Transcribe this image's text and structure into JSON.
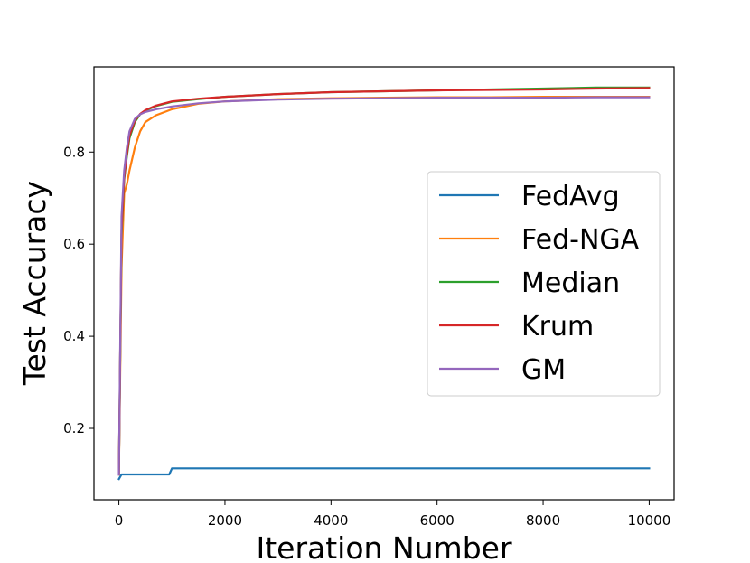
{
  "chart_data": {
    "type": "line",
    "xlabel": "Iteration Number",
    "ylabel": "Test Accuracy",
    "xlim": [
      -470,
      10470
    ],
    "ylim": [
      0.045,
      0.985
    ],
    "xticks": [
      0,
      2000,
      4000,
      6000,
      8000,
      10000
    ],
    "xtick_labels": [
      "0",
      "2000",
      "4000",
      "6000",
      "8000",
      "10000"
    ],
    "yticks": [
      0.2,
      0.4,
      0.6,
      0.8
    ],
    "ytick_labels": [
      "0.2",
      "0.4",
      "0.6",
      "0.8"
    ],
    "grid": false,
    "legend_position": "right",
    "series": [
      {
        "name": "FedAvg",
        "color": "#1f77b4",
        "x": [
          0,
          50,
          950,
          1000,
          10000
        ],
        "y": [
          0.09,
          0.1,
          0.1,
          0.113,
          0.113
        ]
      },
      {
        "name": "Fed-NGA",
        "color": "#ff7f0e",
        "x": [
          0,
          50,
          100,
          150,
          200,
          300,
          400,
          500,
          700,
          1000,
          1500,
          2000,
          3000,
          4000,
          5000,
          6000,
          7000,
          8000,
          9000,
          10000
        ],
        "y": [
          0.1,
          0.55,
          0.71,
          0.73,
          0.76,
          0.81,
          0.845,
          0.865,
          0.88,
          0.893,
          0.905,
          0.91,
          0.915,
          0.917,
          0.918,
          0.919,
          0.919,
          0.92,
          0.92,
          0.92
        ]
      },
      {
        "name": "Median",
        "color": "#2ca02c",
        "x": [
          0,
          50,
          100,
          150,
          200,
          300,
          400,
          500,
          700,
          1000,
          1500,
          2000,
          3000,
          4000,
          5000,
          6000,
          7000,
          8000,
          9000,
          10000
        ],
        "y": [
          0.1,
          0.62,
          0.74,
          0.79,
          0.83,
          0.865,
          0.882,
          0.89,
          0.9,
          0.909,
          0.915,
          0.92,
          0.926,
          0.93,
          0.932,
          0.934,
          0.936,
          0.938,
          0.94,
          0.94
        ]
      },
      {
        "name": "Krum",
        "color": "#d62728",
        "x": [
          0,
          50,
          100,
          150,
          200,
          300,
          400,
          500,
          700,
          1000,
          1500,
          2000,
          3000,
          4000,
          5000,
          6000,
          7000,
          8000,
          9000,
          10000
        ],
        "y": [
          0.1,
          0.63,
          0.745,
          0.795,
          0.835,
          0.868,
          0.883,
          0.891,
          0.901,
          0.91,
          0.916,
          0.92,
          0.926,
          0.93,
          0.932,
          0.934,
          0.935,
          0.936,
          0.938,
          0.939
        ]
      },
      {
        "name": "GM",
        "color": "#9467bd",
        "x": [
          0,
          50,
          100,
          150,
          200,
          300,
          400,
          500,
          700,
          1000,
          1500,
          2000,
          3000,
          4000,
          5000,
          6000,
          7000,
          8000,
          9000,
          10000
        ],
        "y": [
          0.1,
          0.66,
          0.76,
          0.81,
          0.845,
          0.872,
          0.882,
          0.887,
          0.893,
          0.899,
          0.906,
          0.91,
          0.914,
          0.916,
          0.917,
          0.918,
          0.918,
          0.918,
          0.919,
          0.919
        ]
      }
    ]
  }
}
